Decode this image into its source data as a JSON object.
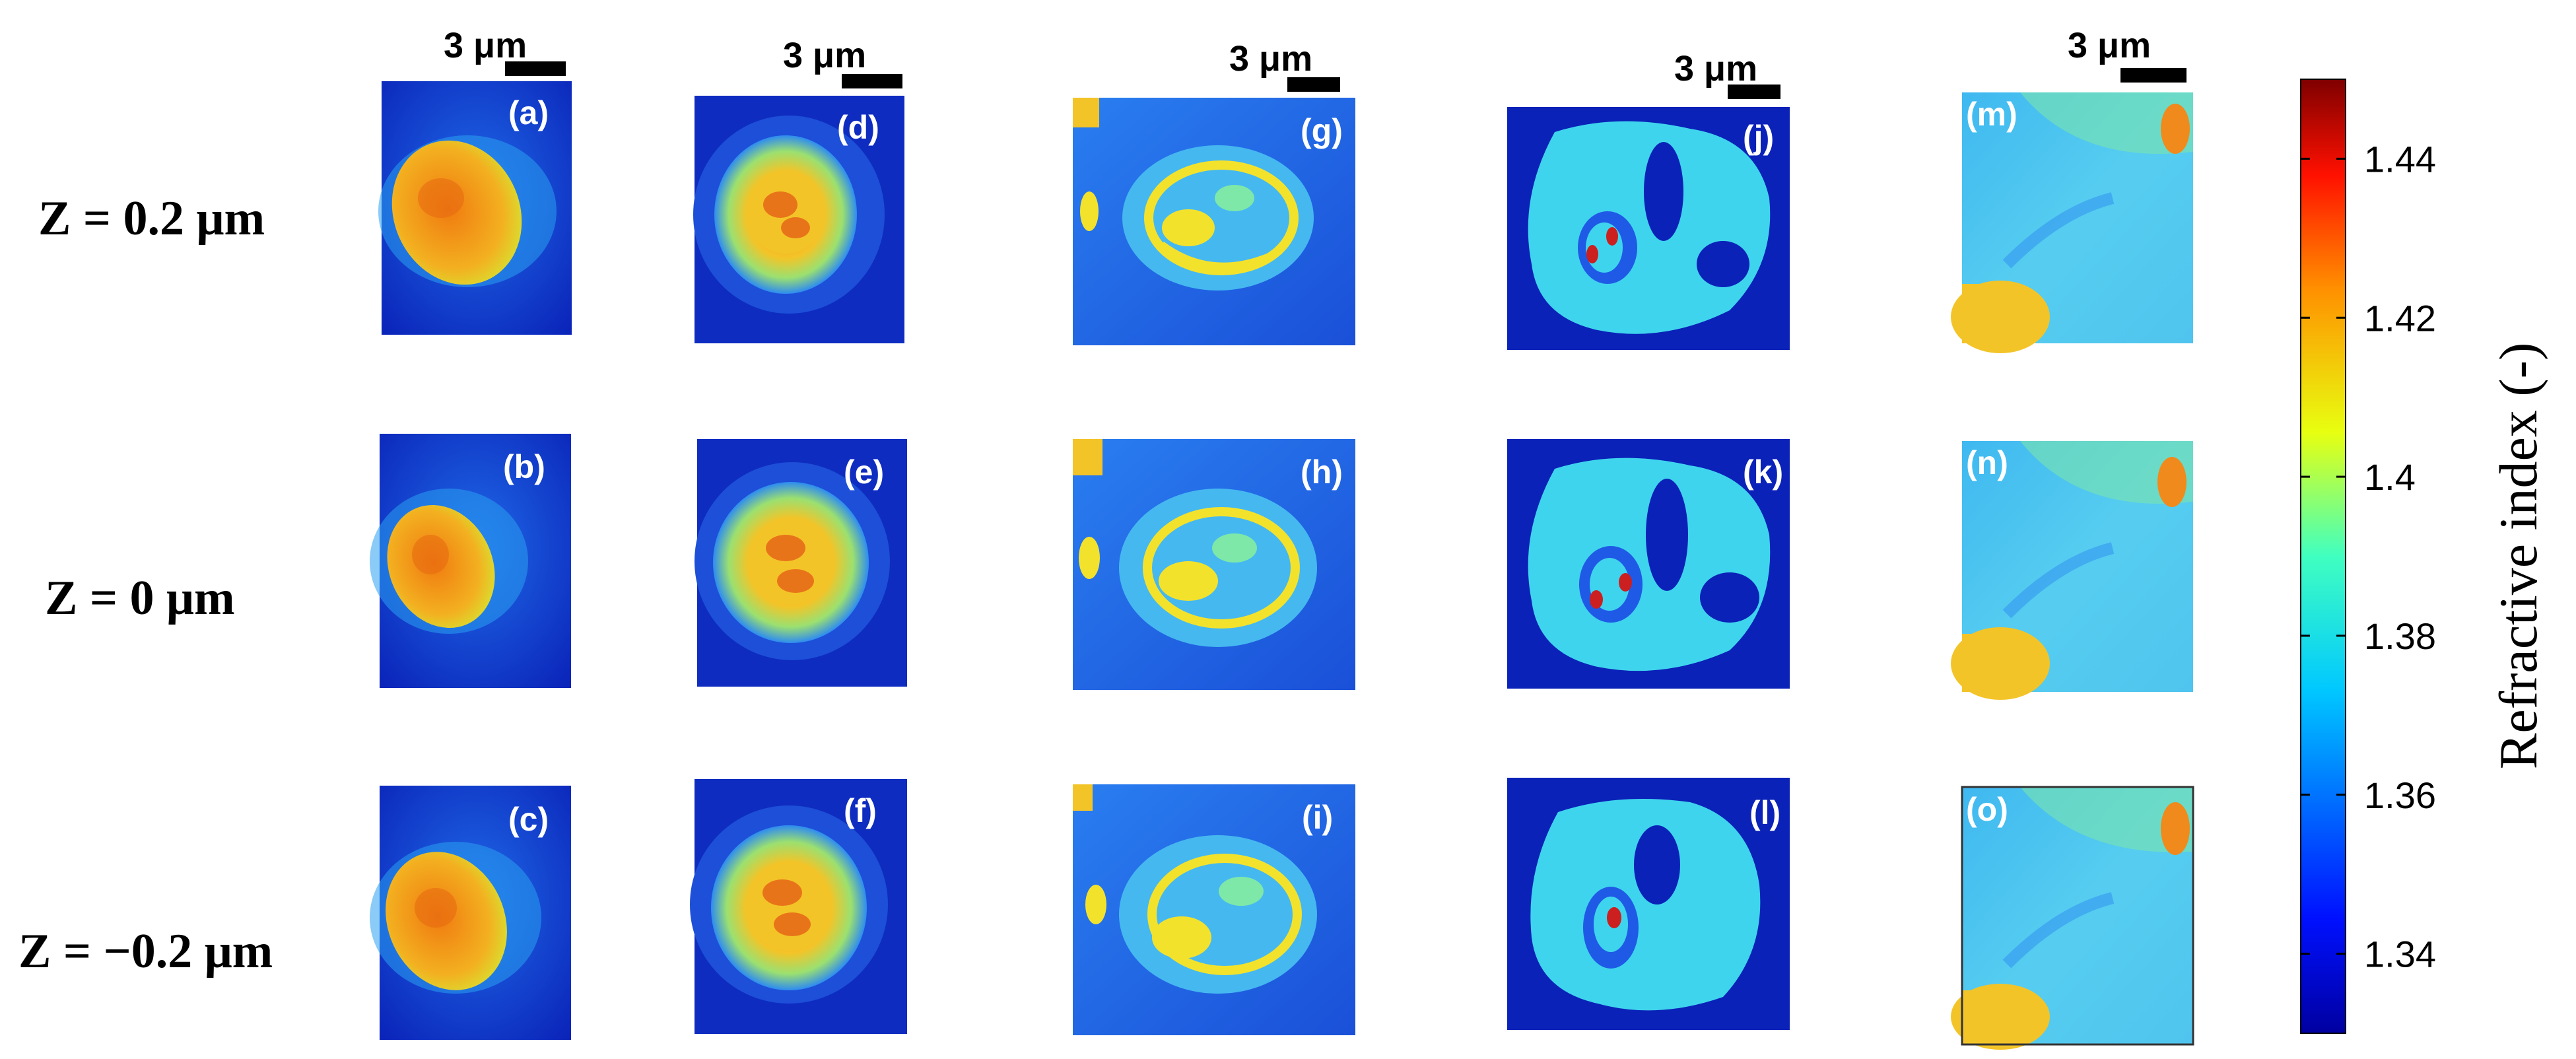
{
  "figure": {
    "scale_bar_text": "3 μm",
    "row_labels": [
      "Z = 0.2 μm",
      "Z = 0 μm",
      "Z = −0.2 μm"
    ],
    "panel_labels": [
      [
        "(a)",
        "(d)",
        "(g)",
        "(j)",
        "(m)"
      ],
      [
        "(b)",
        "(e)",
        "(h)",
        "(k)",
        "(n)"
      ],
      [
        "(c)",
        "(f)",
        "(i)",
        "(l)",
        "(o)"
      ]
    ],
    "colorbar": {
      "title": "Refractive index (-)",
      "ticks": [
        "1.44",
        "1.42",
        "1.4",
        "1.38",
        "1.36",
        "1.34"
      ],
      "tick_values": [
        1.44,
        1.42,
        1.4,
        1.38,
        1.36,
        1.34
      ],
      "range": [
        1.33,
        1.45
      ],
      "colormap": "jet"
    },
    "colors": {
      "dark_blue": "#0a1fa6",
      "blue": "#1f5ae6",
      "cyan": "#3fd4ee",
      "yellow": "#f3e22c",
      "orange": "#f08a1c",
      "red": "#cc1f1f",
      "dark_red": "#7e0000"
    }
  }
}
